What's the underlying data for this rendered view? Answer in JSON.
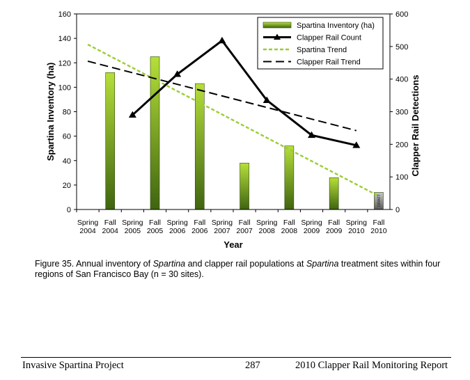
{
  "chart_data": {
    "type": "bar",
    "categories": [
      [
        "Spring",
        "2004"
      ],
      [
        "Fall",
        "2004"
      ],
      [
        "Spring",
        "2005"
      ],
      [
        "Fall",
        "2005"
      ],
      [
        "Spring",
        "2006"
      ],
      [
        "Fall",
        "2006"
      ],
      [
        "Spring",
        "2007"
      ],
      [
        "Fall",
        "2007"
      ],
      [
        "Spring",
        "2008"
      ],
      [
        "Fall",
        "2008"
      ],
      [
        "Spring",
        "2009"
      ],
      [
        "Fall",
        "2009"
      ],
      [
        "Spring",
        "2010"
      ],
      [
        "Fall",
        "2010"
      ]
    ],
    "xlabel": "Year",
    "ylabel_left": "Spartina Inventory (ha)",
    "ylabel_right": "Clapper Rail Detections",
    "ylim_left": [
      0,
      160
    ],
    "ylim_right": [
      0,
      600
    ],
    "yticks_left": [
      0,
      20,
      40,
      60,
      80,
      100,
      120,
      140,
      160
    ],
    "yticks_right": [
      0,
      100,
      200,
      300,
      400,
      500,
      600
    ],
    "bar_series": {
      "name": "Spartina Inventory (ha)",
      "axis": "left",
      "values": [
        null,
        112,
        null,
        125,
        null,
        103,
        null,
        38,
        null,
        52,
        null,
        26,
        null,
        14
      ]
    },
    "bar_annotation": {
      "category_index": 13,
      "text": "DRAFT"
    },
    "line_series": {
      "name": "Clapper Rail Count",
      "axis": "right",
      "values": [
        null,
        null,
        290,
        null,
        415,
        null,
        518,
        null,
        335,
        null,
        228,
        null,
        197,
        null
      ]
    },
    "trend_series": [
      {
        "name": "Spartina Trend",
        "axis": "left",
        "from": [
          0,
          135
        ],
        "to": [
          13,
          11
        ],
        "color": "#9acd32"
      },
      {
        "name": "Clapper Rail Trend",
        "axis": "right",
        "from": [
          0,
          455
        ],
        "to": [
          12,
          242
        ],
        "color": "#000000"
      }
    ],
    "legend_position": "top-right",
    "grid": false
  },
  "caption": {
    "prefix": "Figure 35. Annual inventory of ",
    "italic1": "Spartina",
    "middle": " and clapper rail populations at ",
    "italic2": "Spartina",
    "suffix": " treatment sites within four regions of San Francisco Bay (n = 30 sites)."
  },
  "footer": {
    "left": "Invasive Spartina Project",
    "center": "287",
    "right": "2010 Clapper Rail Monitoring Report"
  }
}
